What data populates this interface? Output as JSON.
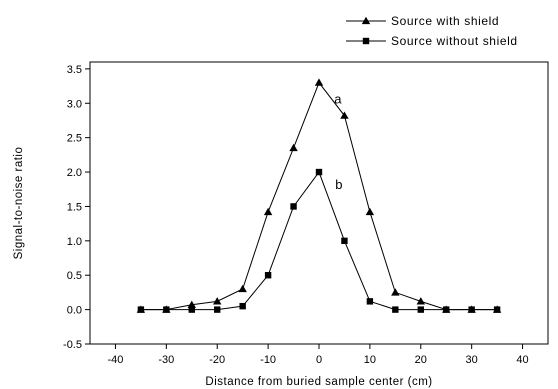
{
  "chart_data": {
    "type": "line",
    "xlabel": "Distance from buried sample center (cm)",
    "ylabel": "Signal-to-noise ratio",
    "xlim": [
      -45,
      45
    ],
    "ylim": [
      -0.5,
      3.6
    ],
    "xticks": [
      -40,
      -30,
      -20,
      -10,
      0,
      10,
      20,
      30,
      40
    ],
    "yticks": [
      -0.5,
      0.0,
      0.5,
      1.0,
      1.5,
      2.0,
      2.5,
      3.0,
      3.5
    ],
    "xtick_labels": [
      "-40",
      "-30",
      "-20",
      "-10",
      "0",
      "10",
      "20",
      "30",
      "40"
    ],
    "ytick_labels": [
      "-0.5",
      "0.0",
      "0.5",
      "1.0",
      "1.5",
      "2.0",
      "2.5",
      "3.0",
      "3.5"
    ],
    "grid": false,
    "legend_position": "top-right",
    "series": [
      {
        "name": "Source with shield",
        "marker": "triangle",
        "x": [
          -35,
          -30,
          -25,
          -20,
          -15,
          -10,
          -5,
          0,
          5,
          10,
          15,
          20,
          25,
          30,
          35
        ],
        "y": [
          0.0,
          0.0,
          0.07,
          0.12,
          0.3,
          1.42,
          2.35,
          3.3,
          2.82,
          1.42,
          0.25,
          0.12,
          0.0,
          0.0,
          0.0
        ]
      },
      {
        "name": "Source without shield",
        "marker": "square",
        "x": [
          -35,
          -30,
          -25,
          -20,
          -15,
          -10,
          -5,
          0,
          5,
          10,
          15,
          20,
          25,
          30,
          35
        ],
        "y": [
          0.0,
          0.0,
          0.0,
          0.0,
          0.05,
          0.5,
          1.5,
          2.0,
          1.0,
          0.12,
          0.0,
          0.0,
          0.0,
          0.0,
          0.0
        ]
      }
    ],
    "annotations": [
      {
        "text": "a",
        "x": 3,
        "y": 3.0
      },
      {
        "text": "b",
        "x": 3.2,
        "y": 1.75
      }
    ]
  }
}
